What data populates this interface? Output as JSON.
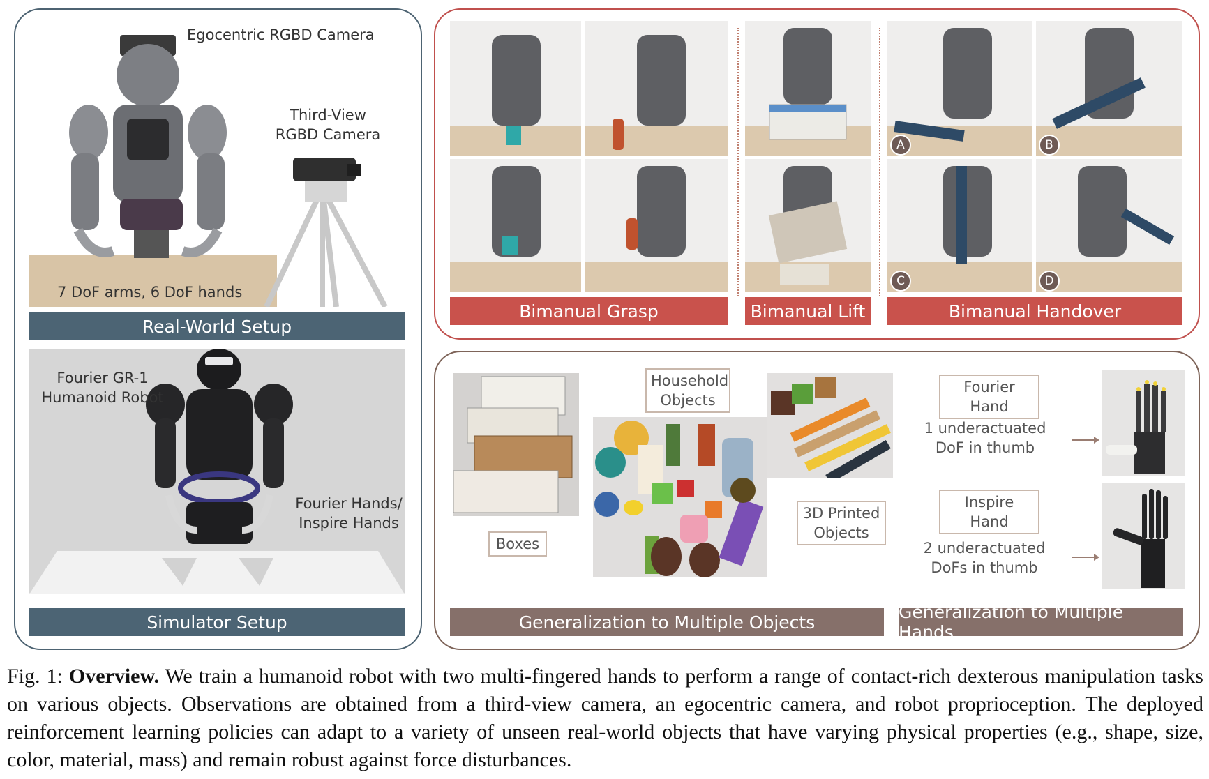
{
  "left_panel": {
    "real_world": {
      "egocentric_label": "Egocentric RGBD Camera",
      "third_view_label": "Third-View\nRGBD Camera",
      "arms_label": "7 DoF arms, 6 DoF hands",
      "bar_title": "Real-World Setup"
    },
    "simulator": {
      "robot_label": "Fourier GR-1\nHumanoid Robot",
      "hands_label": "Fourier Hands/\nInspire Hands",
      "bar_title": "Simulator Setup"
    }
  },
  "tasks_panel": {
    "grasp_title": "Bimanual Grasp",
    "lift_title": "Bimanual Lift",
    "handover_title": "Bimanual Handover",
    "badges": [
      "A",
      "B",
      "C",
      "D"
    ]
  },
  "generalization_panel": {
    "objects_bar": "Generalization to Multiple Objects",
    "hands_bar": "Generalization to Multiple Hands",
    "boxes_label": "Boxes",
    "household_label": "Household\nObjects",
    "printed_label": "3D Printed\nObjects",
    "fourier_hand_label": "Fourier Hand",
    "fourier_desc": "1 underactuated\nDoF in thumb",
    "inspire_hand_label": "Inspire Hand",
    "inspire_desc": "2 underactuated\nDoFs in thumb"
  },
  "caption": {
    "prefix": "Fig. 1: ",
    "bold": "Overview.",
    "text": " We train a humanoid robot with two multi-fingered hands to perform a range of contact-rich dexterous manipulation tasks on various objects. Observations are obtained from a third-view camera, an egocentric camera, and robot proprioception. The deployed reinforcement learning policies can adapt to a variety of unseen real-world objects that have varying physical properties (e.g., shape, size, color, material, mass) and remain robust against force disturbances."
  },
  "colors": {
    "left_border": "#4d6372",
    "bar_slate": "#4c6474",
    "red_border": "#c0504d",
    "red_bar": "#c9524c",
    "brown_border": "#7e6459",
    "brown_bar": "#86706a"
  }
}
